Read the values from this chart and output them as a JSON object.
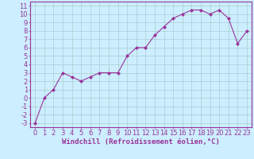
{
  "x": [
    0,
    1,
    2,
    3,
    4,
    5,
    6,
    7,
    8,
    9,
    10,
    11,
    12,
    13,
    14,
    15,
    16,
    17,
    18,
    19,
    20,
    21,
    22,
    23
  ],
  "y": [
    -3,
    0,
    1,
    3,
    2.5,
    2,
    2.5,
    3,
    3,
    3,
    5,
    6,
    6,
    7.5,
    8.5,
    9.5,
    10,
    10.5,
    10.5,
    10,
    10.5,
    9.5,
    6.5,
    8
  ],
  "line_color": "#993399",
  "marker": "D",
  "marker_size": 2,
  "bg_color": "#cceeff",
  "grid_color": "#aacccc",
  "xlabel": "Windchill (Refroidissement éolien,°C)",
  "xlabel_color": "#993399",
  "ylabel_ticks": [
    -3,
    -2,
    -1,
    0,
    1,
    2,
    3,
    4,
    5,
    6,
    7,
    8,
    9,
    10,
    11
  ],
  "xlim": [
    -0.5,
    23.5
  ],
  "ylim": [
    -3.5,
    11.5
  ],
  "tick_label_color": "#993399",
  "axis_color": "#993399",
  "spine_color": "#993399",
  "font_size": 6,
  "xlabel_fontsize": 6.5
}
